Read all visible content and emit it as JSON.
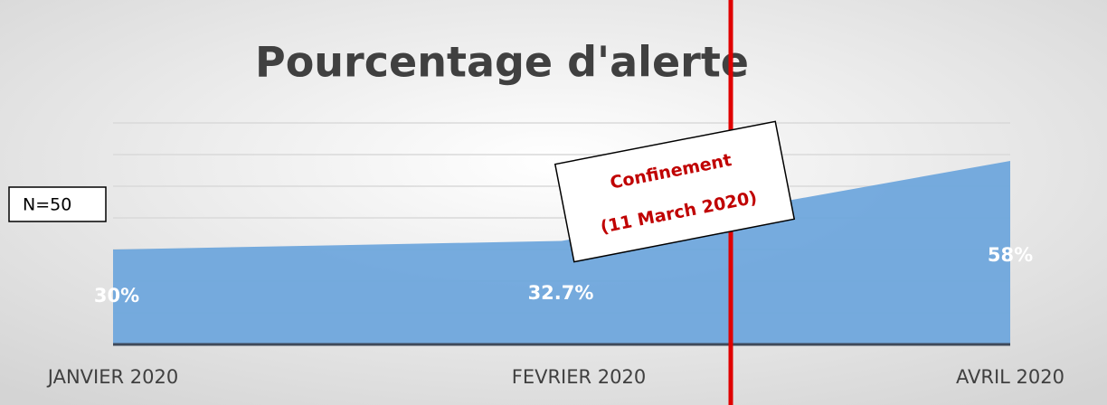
{
  "chart_data": {
    "type": "area",
    "title": "Pourcentage d'alerte",
    "categories": [
      "JANVIER 2020",
      "FEVRIER 2020",
      "AVRIL 2020"
    ],
    "values": [
      30,
      32.7,
      58
    ],
    "value_labels": [
      "30%",
      "32.7%",
      "58%"
    ],
    "color": "#6fa6dc",
    "ylim": [
      0,
      70
    ],
    "yticks": [
      0,
      10,
      20,
      30,
      40,
      50,
      60,
      70
    ],
    "grid": true,
    "note": "N=50",
    "annotation": {
      "title": "Confinement",
      "subtitle": "(11 March 2020)"
    }
  }
}
